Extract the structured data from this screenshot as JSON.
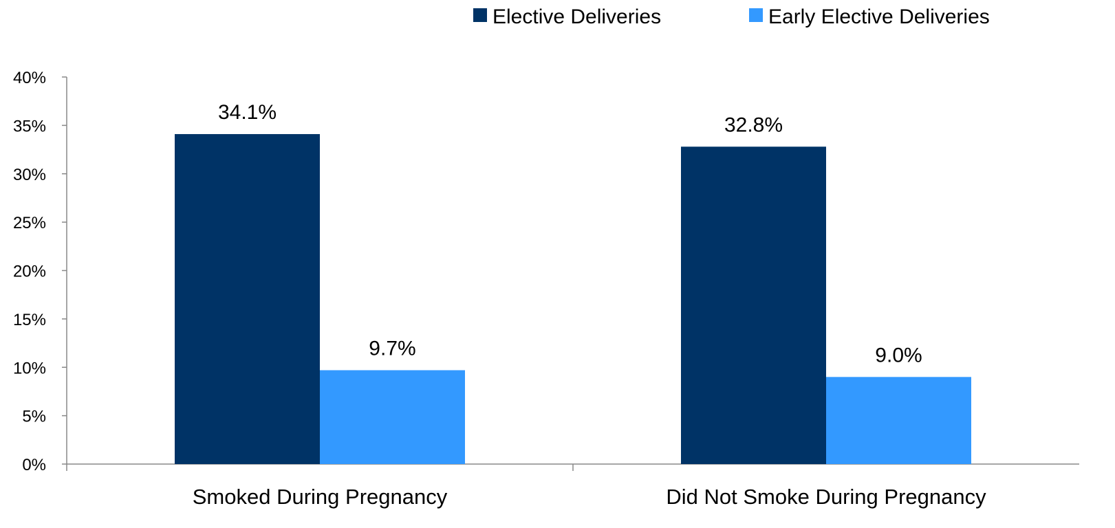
{
  "chart_data": {
    "type": "bar",
    "categories": [
      "Smoked During Pregnancy",
      "Did Not Smoke During Pregnancy"
    ],
    "series": [
      {
        "name": "Elective Deliveries",
        "values": [
          34.1,
          32.8
        ],
        "color": "#003366",
        "labels": [
          "34.1%",
          "32.8%"
        ]
      },
      {
        "name": "Early Elective Deliveries",
        "values": [
          9.7,
          9.0
        ],
        "color": "#3399FF",
        "labels": [
          "9.7%",
          "9.0%"
        ]
      }
    ],
    "y_ticks": [
      "0%",
      "5%",
      "10%",
      "15%",
      "20%",
      "25%",
      "30%",
      "35%",
      "40%"
    ],
    "ylim": [
      0,
      40
    ],
    "y_unit": "%",
    "grid": false,
    "legend_position": "top-right",
    "axis_color": "#888888"
  }
}
